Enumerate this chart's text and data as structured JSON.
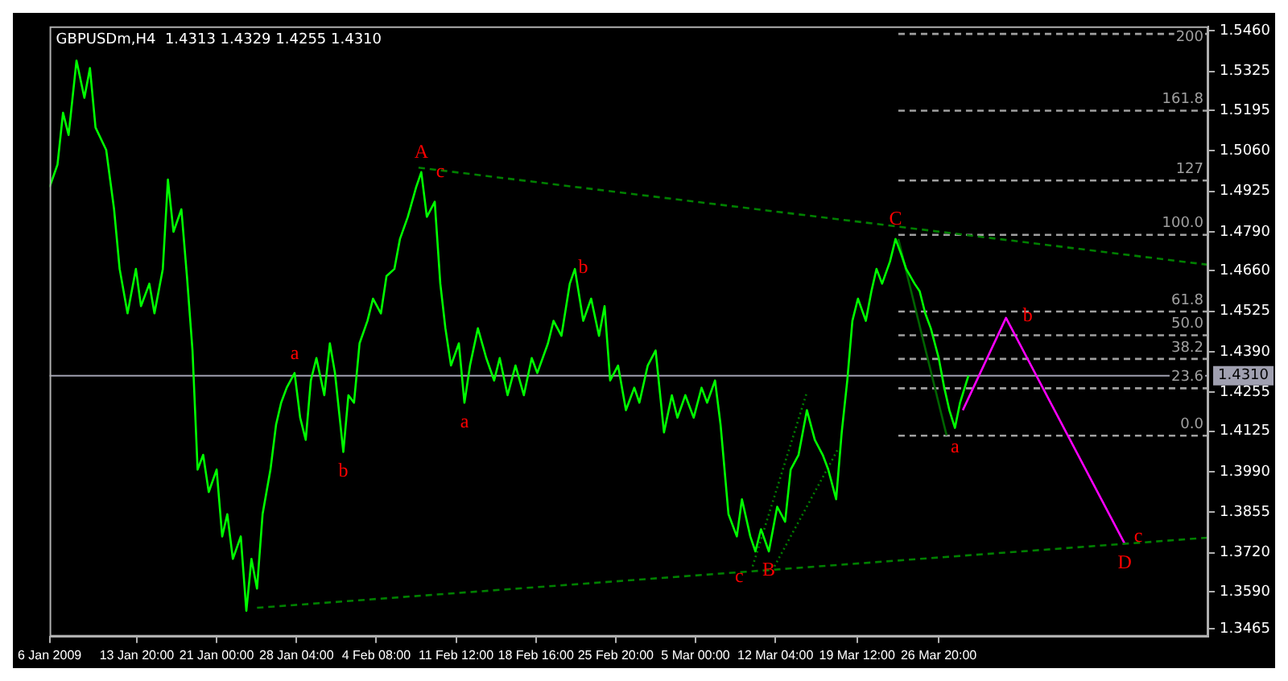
{
  "chart_data": {
    "type": "line",
    "title": "GBPUSDm,H4  1.4313 1.4329 1.4255 1.4310",
    "xlim": [
      "2009-01-06T00:00",
      "2009-04-20T01:00"
    ],
    "xticks": [
      {
        "value": "2009-01-06T00:00",
        "label": "6 Jan 2009"
      },
      {
        "value": "2009-01-13T20:00",
        "label": "13 Jan 20:00"
      },
      {
        "value": "2009-01-21T00:00",
        "label": "21 Jan 00:00"
      },
      {
        "value": "2009-01-28T04:00",
        "label": "28 Jan 04:00"
      },
      {
        "value": "2009-02-04T08:00",
        "label": "4 Feb 08:00"
      },
      {
        "value": "2009-02-11T12:00",
        "label": "11 Feb 12:00"
      },
      {
        "value": "2009-02-18T16:00",
        "label": "18 Feb 16:00"
      },
      {
        "value": "2009-02-25T20:00",
        "label": "25 Feb 20:00"
      },
      {
        "value": "2009-03-05T00:00",
        "label": "5 Mar 00:00"
      },
      {
        "value": "2009-03-12T04:00",
        "label": "12 Mar 04:00"
      },
      {
        "value": "2009-03-19T12:00",
        "label": "19 Mar 12:00"
      },
      {
        "value": "2009-03-26T20:00",
        "label": "26 Mar 20:00"
      }
    ],
    "ylim": [
      1.344,
      1.5475
    ],
    "yticks": [
      {
        "value": 1.3465,
        "label": "1.3465"
      },
      {
        "value": 1.359,
        "label": "1.3590"
      },
      {
        "value": 1.372,
        "label": "1.3720"
      },
      {
        "value": 1.3855,
        "label": "1.3855"
      },
      {
        "value": 1.399,
        "label": "1.3990"
      },
      {
        "value": 1.4125,
        "label": "1.4125"
      },
      {
        "value": 1.4255,
        "label": "1.4255"
      },
      {
        "value": 1.439,
        "label": "1.4390"
      },
      {
        "value": 1.4525,
        "label": "1.4525"
      },
      {
        "value": 1.466,
        "label": "1.4660"
      },
      {
        "value": 1.479,
        "label": "1.4790"
      },
      {
        "value": 1.4925,
        "label": "1.4925"
      },
      {
        "value": 1.506,
        "label": "1.5060"
      },
      {
        "value": 1.5195,
        "label": "1.5195"
      },
      {
        "value": 1.5325,
        "label": "1.5325"
      },
      {
        "value": 1.546,
        "label": "1.5460"
      }
    ],
    "grid": false,
    "legend": false,
    "marker": "none",
    "series": [
      {
        "color": "#00ff00",
        "line_style": "solid",
        "x": [
          "2009-01-06T00:00",
          "2009-01-06T17:00",
          "2009-01-07T05:00",
          "2009-01-07T17:00",
          "2009-01-08T10:00",
          "2009-01-09T03:00",
          "2009-01-09T15:00",
          "2009-01-10T03:00",
          "2009-01-11T02:00",
          "2009-01-11T19:00",
          "2009-01-12T07:00",
          "2009-01-13T00:00",
          "2009-01-13T18:00",
          "2009-01-14T05:00",
          "2009-01-14T23:00",
          "2009-01-15T10:00",
          "2009-01-16T04:00",
          "2009-01-16T15:00",
          "2009-01-17T03:00",
          "2009-01-17T20:00",
          "2009-01-18T08:00",
          "2009-01-18T20:00",
          "2009-01-19T07:00",
          "2009-01-19T19:00",
          "2009-01-20T07:00",
          "2009-01-21T00:00",
          "2009-01-21T12:00",
          "2009-01-21T23:00",
          "2009-01-22T11:00",
          "2009-01-23T04:00",
          "2009-01-23T16:00",
          "2009-01-24T03:00",
          "2009-01-24T15:00",
          "2009-01-25T03:00",
          "2009-01-25T20:00",
          "2009-01-26T08:00",
          "2009-01-26T19:00",
          "2009-01-27T07:00",
          "2009-01-28T00:00",
          "2009-01-28T12:00",
          "2009-01-29T00:00",
          "2009-01-29T11:00",
          "2009-01-29T23:00",
          "2009-01-30T16:00",
          "2009-01-31T04:00",
          "2009-01-31T15:00",
          "2009-02-01T09:00",
          "2009-02-01T20:00",
          "2009-02-02T08:00",
          "2009-02-02T20:00",
          "2009-02-03T13:00",
          "2009-02-04T01:00",
          "2009-02-04T18:00",
          "2009-02-05T06:00",
          "2009-02-05T23:00",
          "2009-02-06T11:00",
          "2009-02-07T04:00",
          "2009-02-07T22:00",
          "2009-02-08T09:00",
          "2009-02-08T21:00",
          "2009-02-09T14:00",
          "2009-02-10T02:00",
          "2009-02-10T13:00",
          "2009-02-11T01:00",
          "2009-02-11T18:00",
          "2009-02-12T06:00",
          "2009-02-12T18:00",
          "2009-02-13T11:00",
          "2009-02-14T05:00",
          "2009-02-14T22:00",
          "2009-02-15T10:00",
          "2009-02-16T03:00",
          "2009-02-16T20:00",
          "2009-02-17T14:00",
          "2009-02-18T07:00",
          "2009-02-18T19:00",
          "2009-02-19T18:00",
          "2009-02-20T06:00",
          "2009-02-20T23:00",
          "2009-02-21T17:00",
          "2009-02-22T04:00",
          "2009-02-22T22:00",
          "2009-02-23T15:00",
          "2009-02-24T08:00",
          "2009-02-24T20:00",
          "2009-02-25T08:00",
          "2009-02-26T01:00",
          "2009-02-26T18:00",
          "2009-02-27T12:00",
          "2009-02-27T23:00",
          "2009-02-28T17:00",
          "2009-03-01T10:00",
          "2009-03-02T04:00",
          "2009-03-02T21:00",
          "2009-03-03T09:00",
          "2009-03-04T02:00",
          "2009-03-04T20:00",
          "2009-03-05T13:00",
          "2009-03-06T01:00",
          "2009-03-06T18:00",
          "2009-03-07T06:00",
          "2009-03-07T23:00",
          "2009-03-08T17:00",
          "2009-03-09T04:00",
          "2009-03-09T22:00",
          "2009-03-10T09:00",
          "2009-03-10T21:00",
          "2009-03-11T14:00",
          "2009-03-12T08:00",
          "2009-03-13T01:00",
          "2009-03-13T13:00",
          "2009-03-14T06:00",
          "2009-03-15T00:00",
          "2009-03-15T17:00",
          "2009-03-16T10:00",
          "2009-03-16T22:00",
          "2009-03-17T15:00",
          "2009-03-18T03:00",
          "2009-03-18T15:00",
          "2009-03-19T02:00",
          "2009-03-19T14:00",
          "2009-03-20T07:00",
          "2009-03-20T19:00",
          "2009-03-21T06:00",
          "2009-03-21T18:00",
          "2009-03-22T11:00",
          "2009-03-22T23:00",
          "2009-03-23T11:00",
          "2009-03-23T22:00",
          "2009-03-24T16:00",
          "2009-03-25T03:00",
          "2009-03-25T15:00",
          "2009-03-26T03:00",
          "2009-03-26T20:00",
          "2009-03-27T08:00",
          "2009-03-27T19:00",
          "2009-03-28T07:00",
          "2009-03-28T18:00",
          "2009-03-29T12:00"
        ],
        "values": [
          1.4939,
          1.5014,
          1.5187,
          1.5113,
          1.5361,
          1.5237,
          1.5336,
          1.5138,
          1.5063,
          1.4865,
          1.4666,
          1.4518,
          1.4666,
          1.4542,
          1.4617,
          1.4518,
          1.4666,
          1.4964,
          1.479,
          1.4865,
          1.4642,
          1.4394,
          1.3997,
          1.4046,
          1.3922,
          1.3997,
          1.3774,
          1.3848,
          1.3699,
          1.3774,
          1.3526,
          1.3699,
          1.36,
          1.3848,
          1.3997,
          1.4146,
          1.422,
          1.427,
          1.4319,
          1.417,
          1.4096,
          1.4294,
          1.4369,
          1.4245,
          1.4418,
          1.4319,
          1.4056,
          1.4245,
          1.422,
          1.4418,
          1.4493,
          1.4567,
          1.4518,
          1.4642,
          1.4666,
          1.4766,
          1.484,
          1.4939,
          1.4989,
          1.484,
          1.489,
          1.4617,
          1.4468,
          1.4344,
          1.4418,
          1.422,
          1.4344,
          1.4468,
          1.4369,
          1.4294,
          1.4369,
          1.4245,
          1.4344,
          1.4245,
          1.4369,
          1.4319,
          1.4418,
          1.4493,
          1.4443,
          1.4617,
          1.4666,
          1.4493,
          1.4567,
          1.4443,
          1.4542,
          1.4294,
          1.4344,
          1.4195,
          1.427,
          1.422,
          1.4344,
          1.4394,
          1.4121,
          1.4245,
          1.417,
          1.4245,
          1.417,
          1.427,
          1.422,
          1.4294,
          1.4146,
          1.3848,
          1.3774,
          1.3898,
          1.3774,
          1.3724,
          1.3798,
          1.3724,
          1.3873,
          1.3823,
          1.3997,
          1.4046,
          1.4195,
          1.4096,
          1.4046,
          1.3997,
          1.3898,
          1.4121,
          1.4294,
          1.4493,
          1.4567,
          1.4493,
          1.4592,
          1.4666,
          1.4617,
          1.4691,
          1.4766,
          1.4716,
          1.4666,
          1.4617,
          1.4592,
          1.4518,
          1.4468,
          1.4369,
          1.427,
          1.4195,
          1.4136,
          1.422,
          1.431
        ]
      },
      {
        "color": "#008000",
        "line_style": "dashed",
        "x": [
          "2009-02-08T03:00",
          "2009-04-20T01:00"
        ],
        "values": [
          1.5004,
          1.468
        ]
      },
      {
        "color": "#008000",
        "line_style": "dashed",
        "x": [
          "2009-01-24T15:00",
          "2009-04-20T01:00"
        ],
        "values": [
          1.3536,
          1.377
        ]
      },
      {
        "color": "#008000",
        "line_style": "dotted",
        "x": [
          "2009-03-10T03:00",
          "2009-03-15T00:00"
        ],
        "values": [
          1.3674,
          1.4255
        ]
      },
      {
        "color": "#008000",
        "line_style": "dotted",
        "x": [
          "2009-03-12T02:00",
          "2009-03-17T21:00"
        ],
        "values": [
          1.3674,
          1.4071
        ]
      },
      {
        "color": "#006400",
        "line_style": "solid",
        "x": [
          "2009-03-23T05:00",
          "2009-03-27T13:00"
        ],
        "values": [
          1.4766,
          1.4111
        ]
      },
      {
        "color": "#ff00ff",
        "line_style": "solid",
        "x": [
          "2009-03-29T00:00",
          "2009-04-01T21:00",
          "2009-04-12T13:00"
        ],
        "values": [
          1.4195,
          1.4503,
          1.3749
        ]
      },
      {
        "color": "#a0a0a0",
        "line_style": "dashed",
        "x": [
          "2009-03-23T05:00",
          "2009-04-20T01:00"
        ],
        "values": [
          1.411,
          1.411
        ]
      },
      {
        "color": "#a0a0a0",
        "line_style": "dashed",
        "x": [
          "2009-03-23T05:00",
          "2009-04-20T01:00"
        ],
        "values": [
          1.4268,
          1.4268
        ]
      },
      {
        "color": "#a0a0a0",
        "line_style": "dashed",
        "x": [
          "2009-03-23T05:00",
          "2009-04-20T01:00"
        ],
        "values": [
          1.4366,
          1.4366
        ]
      },
      {
        "color": "#a0a0a0",
        "line_style": "dashed",
        "x": [
          "2009-03-23T05:00",
          "2009-04-20T01:00"
        ],
        "values": [
          1.4445,
          1.4445
        ]
      },
      {
        "color": "#a0a0a0",
        "line_style": "dashed",
        "x": [
          "2009-03-23T05:00",
          "2009-04-20T01:00"
        ],
        "values": [
          1.4524,
          1.4524
        ]
      },
      {
        "color": "#a0a0a0",
        "line_style": "dashed",
        "x": [
          "2009-03-23T05:00",
          "2009-04-20T01:00"
        ],
        "values": [
          1.478,
          1.478
        ]
      },
      {
        "color": "#a0a0a0",
        "line_style": "dashed",
        "x": [
          "2009-03-23T05:00",
          "2009-04-20T01:00"
        ],
        "values": [
          1.4961,
          1.4961
        ]
      },
      {
        "color": "#a0a0a0",
        "line_style": "dashed",
        "x": [
          "2009-03-23T05:00",
          "2009-04-20T01:00"
        ],
        "values": [
          1.5194,
          1.5194
        ]
      },
      {
        "color": "#a0a0a0",
        "line_style": "dashed",
        "x": [
          "2009-03-23T05:00",
          "2009-04-20T01:00"
        ],
        "values": [
          1.545,
          1.545
        ]
      }
    ],
    "ref_lines": [
      {
        "axis": "y",
        "value": 1.431,
        "label": "1.4310",
        "color": "#a0a0b0"
      }
    ],
    "annotations": [
      {
        "text": "A",
        "x": "2009-02-08T09:00",
        "y": 1.4989
      },
      {
        "text": "c",
        "x": "2009-02-10T02:00",
        "y": 1.4989
      },
      {
        "text": "a",
        "x": "2009-01-28T00:00",
        "y": 1.4319
      },
      {
        "text": "b",
        "x": "2009-02-01T09:00",
        "y": 1.4056
      },
      {
        "text": "a",
        "x": "2009-02-12T06:00",
        "y": 1.422
      },
      {
        "text": "b",
        "x": "2009-02-22T22:00",
        "y": 1.4671
      },
      {
        "text": "c",
        "x": "2009-03-08T22:00",
        "y": 1.364
      },
      {
        "text": "B",
        "x": "2009-03-11T14:00",
        "y": 1.3724
      },
      {
        "text": "C",
        "x": "2009-03-22T23:00",
        "y": 1.4766
      },
      {
        "text": "a",
        "x": "2009-03-28T07:00",
        "y": 1.4136
      },
      {
        "text": "b",
        "x": "2009-04-03T20:00",
        "y": 1.4508
      },
      {
        "text": "c",
        "x": "2009-04-13T18:00",
        "y": 1.3774
      },
      {
        "text": "D",
        "x": "2009-04-12T13:00",
        "y": 1.3749
      },
      {
        "text": "0.0",
        "x": "2009-04-20T01:00",
        "y": 1.411
      },
      {
        "text": "23.6",
        "x": "2009-04-20T01:00",
        "y": 1.4268
      },
      {
        "text": "38.2",
        "x": "2009-04-20T01:00",
        "y": 1.4366
      },
      {
        "text": "50.0",
        "x": "2009-04-20T01:00",
        "y": 1.4445
      },
      {
        "text": "61.8",
        "x": "2009-04-20T01:00",
        "y": 1.4524
      },
      {
        "text": "100.0",
        "x": "2009-04-20T01:00",
        "y": 1.478
      },
      {
        "text": "127",
        "x": "2009-04-20T01:00",
        "y": 1.4961
      },
      {
        "text": "161.8",
        "x": "2009-04-20T01:00",
        "y": 1.5194
      },
      {
        "text": "200",
        "x": "2009-04-20T01:00",
        "y": 1.545
      }
    ]
  }
}
